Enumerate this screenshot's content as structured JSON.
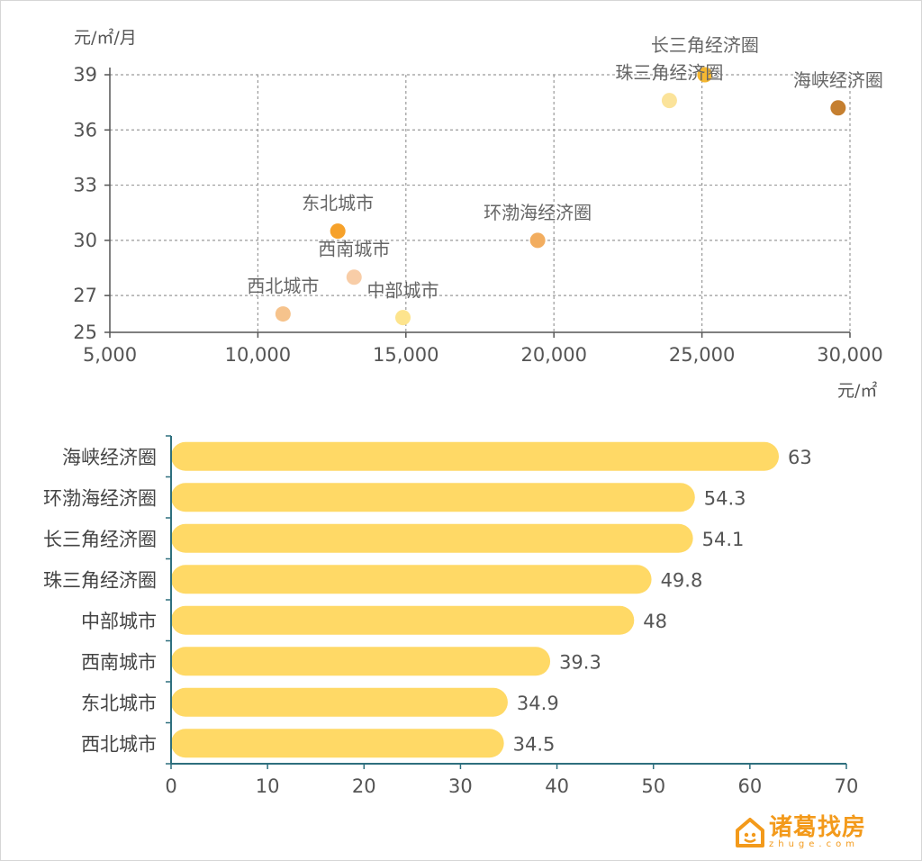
{
  "colors": {
    "bar": "#ffd966",
    "axis": "#2e6f7e",
    "grid": "#9a9a9a",
    "logo": "#f39a1b"
  },
  "scatter": {
    "chart_data": {
      "type": "scatter",
      "y_unit": "元/㎡/月",
      "x_unit": "元/㎡",
      "xlim": [
        5000,
        30000
      ],
      "ylim": [
        25,
        39
      ],
      "x_ticks": [
        "5,000",
        "10,000",
        "15,000",
        "20,000",
        "25,000",
        "30,000"
      ],
      "y_ticks": [
        "25",
        "27",
        "30",
        "33",
        "36",
        "39"
      ],
      "points": [
        {
          "name": "长三角经济圈",
          "x": 25100,
          "y": 39.0,
          "color": "#f5b731"
        },
        {
          "name": "珠三角经济圈",
          "x": 23900,
          "y": 37.6,
          "color": "#fbe39a"
        },
        {
          "name": "海峡经济圈",
          "x": 29600,
          "y": 37.2,
          "color": "#c57f30"
        },
        {
          "name": "环渤海经济圈",
          "x": 19450,
          "y": 30.0,
          "color": "#f2ad5f"
        },
        {
          "name": "东北城市",
          "x": 12700,
          "y": 30.5,
          "color": "#f6a12a"
        },
        {
          "name": "西南城市",
          "x": 13250,
          "y": 28.0,
          "color": "#f8cda7"
        },
        {
          "name": "西北城市",
          "x": 10850,
          "y": 26.0,
          "color": "#f6c38c"
        },
        {
          "name": "中部城市",
          "x": 14900,
          "y": 25.8,
          "color": "#fde48d"
        }
      ]
    }
  },
  "bars": {
    "chart_data": {
      "type": "bar",
      "orientation": "horizontal",
      "categories": [
        "海峡经济圈",
        "环渤海经济圈",
        "长三角经济圈",
        "珠三角经济圈",
        "中部城市",
        "西南城市",
        "东北城市",
        "西北城市"
      ],
      "values": [
        63,
        54.3,
        54.1,
        49.8,
        48,
        39.3,
        34.9,
        34.5
      ],
      "value_labels": [
        "63",
        "54.3",
        "54.1",
        "49.8",
        "48",
        "39.3",
        "34.9",
        "34.5"
      ],
      "xlim": [
        0,
        70
      ],
      "x_ticks": [
        "0",
        "10",
        "20",
        "30",
        "40",
        "50",
        "60",
        "70"
      ]
    }
  },
  "logo": {
    "name": "诸葛找房",
    "url": "zhuge.com"
  }
}
